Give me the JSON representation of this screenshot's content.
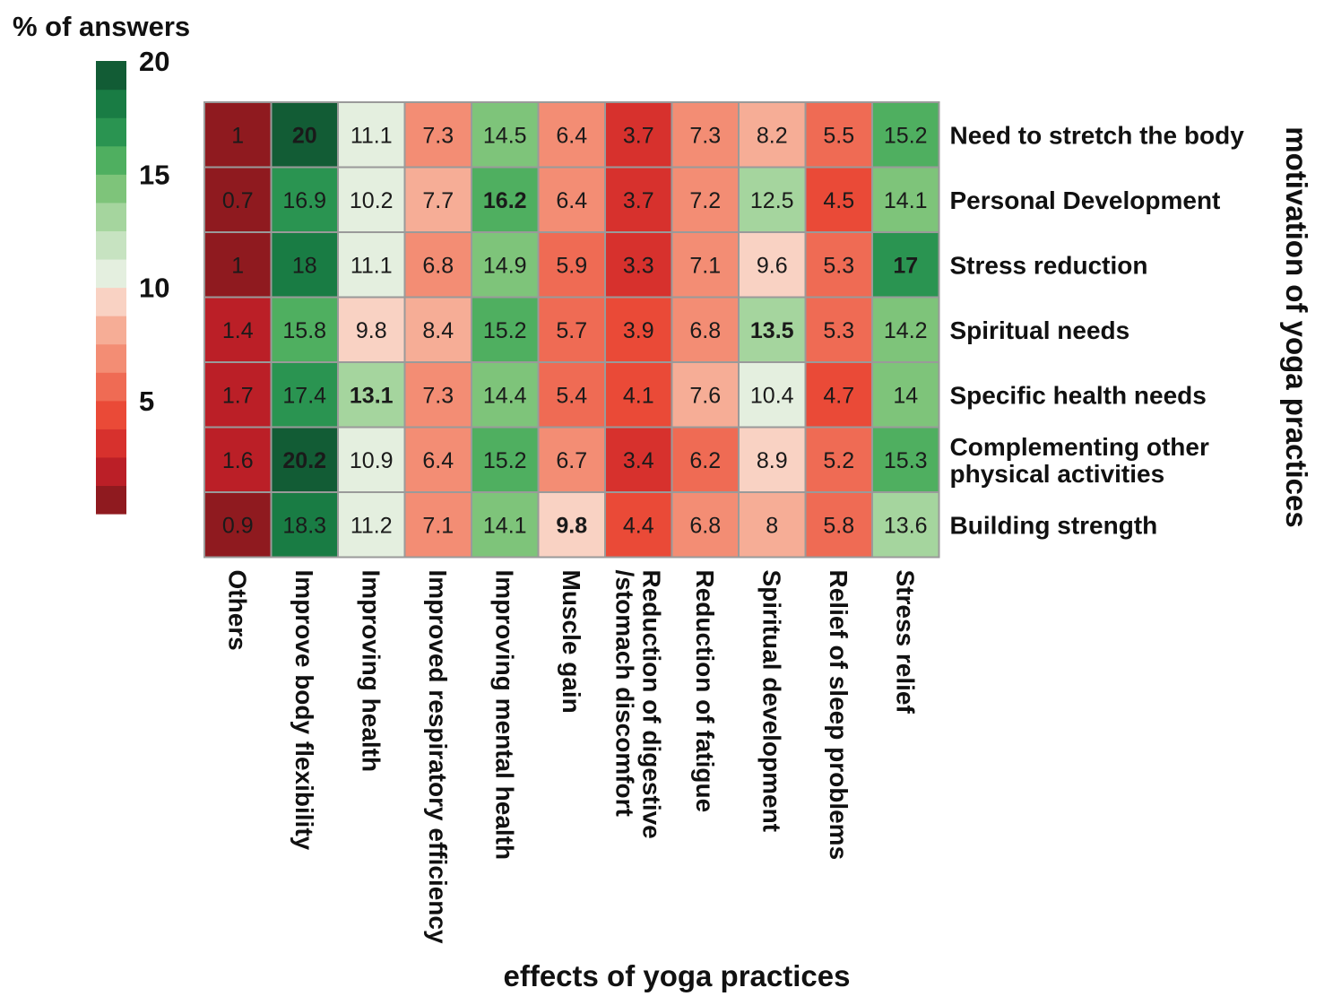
{
  "chart_data": {
    "type": "heatmap",
    "legend_title": "% of answers",
    "legend_ticks": [
      20,
      15,
      10,
      5
    ],
    "legend_range": [
      0,
      20
    ],
    "legend_colors": [
      "#8f1a1f",
      "#bb1f27",
      "#d7312d",
      "#ea4a37",
      "#ef6b54",
      "#f38d74",
      "#f6ad96",
      "#f9d2c3",
      "#e4efdf",
      "#c7e3c1",
      "#a5d59e",
      "#7ec47a",
      "#4faf60",
      "#2a9451",
      "#197c44",
      "#125c35"
    ],
    "xlabel": "effects of yoga practices",
    "ylabel": "motivation of yoga practices",
    "columns": [
      "Others",
      "Improve body flexibility",
      "Improving health",
      "Improved respiratory efficiency",
      "Improving mental health",
      "Muscle gain",
      "Reduction of digestive\n/stomach discomfort",
      "Reduction of fatigue",
      "Spiritual development",
      "Relief of sleep problems",
      "Stress relief"
    ],
    "rows": [
      "Need to stretch the body",
      "Personal Development",
      "Stress reduction",
      "Spiritual needs",
      "Specific health needs",
      "Complementing other\nphysical activities",
      "Building strength"
    ],
    "values": [
      [
        1,
        20,
        11.1,
        7.3,
        14.5,
        6.4,
        3.7,
        7.3,
        8.2,
        5.5,
        15.2
      ],
      [
        0.7,
        16.9,
        10.2,
        7.7,
        16.2,
        6.4,
        3.7,
        7.2,
        12.5,
        4.5,
        14.1
      ],
      [
        1,
        18,
        11.1,
        6.8,
        14.9,
        5.9,
        3.3,
        7.1,
        9.6,
        5.3,
        17
      ],
      [
        1.4,
        15.8,
        9.8,
        8.4,
        15.2,
        5.7,
        3.9,
        6.8,
        13.5,
        5.3,
        14.2
      ],
      [
        1.7,
        17.4,
        13.1,
        7.3,
        14.4,
        5.4,
        4.1,
        7.6,
        10.4,
        4.7,
        14
      ],
      [
        1.6,
        20.2,
        10.9,
        6.4,
        15.2,
        6.7,
        3.4,
        6.2,
        8.9,
        5.2,
        15.3
      ],
      [
        0.9,
        18.3,
        11.2,
        7.1,
        14.1,
        9.8,
        4.4,
        6.8,
        8,
        5.8,
        13.6
      ]
    ],
    "bold_cells": [
      [
        0,
        1
      ],
      [
        1,
        4
      ],
      [
        2,
        10
      ],
      [
        3,
        8
      ],
      [
        4,
        2
      ],
      [
        5,
        1
      ],
      [
        6,
        5
      ]
    ]
  }
}
